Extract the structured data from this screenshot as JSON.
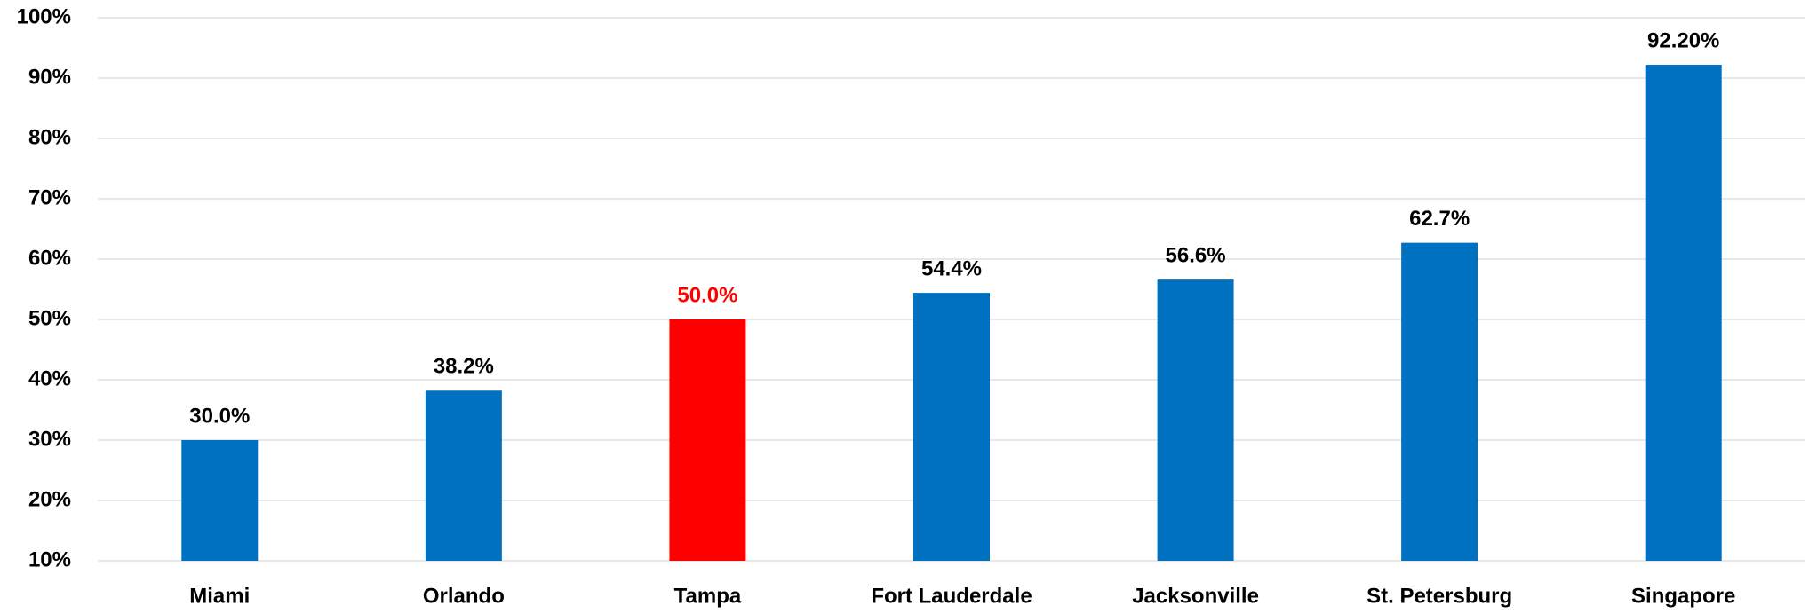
{
  "chart_data": {
    "type": "bar",
    "categories": [
      "Miami",
      "Orlando",
      "Tampa",
      "Fort Lauderdale",
      "Jacksonville",
      "St. Petersburg",
      "Singapore"
    ],
    "values": [
      30.0,
      38.2,
      50.0,
      54.4,
      56.6,
      62.7,
      92.2
    ],
    "value_labels": [
      "30.0%",
      "38.2%",
      "50.0%",
      "54.4%",
      "56.6%",
      "62.7%",
      "92.20%"
    ],
    "colors": [
      "#0070c0",
      "#0070c0",
      "#ff0000",
      "#0070c0",
      "#0070c0",
      "#0070c0",
      "#0070c0"
    ],
    "label_colors": [
      "#000000",
      "#000000",
      "#ff0000",
      "#000000",
      "#000000",
      "#000000",
      "#000000"
    ],
    "ylim": [
      10,
      100
    ],
    "yticks": [
      {
        "value": 10,
        "label": "10%"
      },
      {
        "value": 20,
        "label": "20%"
      },
      {
        "value": 30,
        "label": "30%"
      },
      {
        "value": 40,
        "label": "40%"
      },
      {
        "value": 50,
        "label": "50%"
      },
      {
        "value": 60,
        "label": "60%"
      },
      {
        "value": 70,
        "label": "70%"
      },
      {
        "value": 80,
        "label": "80%"
      },
      {
        "value": 90,
        "label": "90%"
      },
      {
        "value": 100,
        "label": "100%"
      }
    ],
    "grid": true
  }
}
